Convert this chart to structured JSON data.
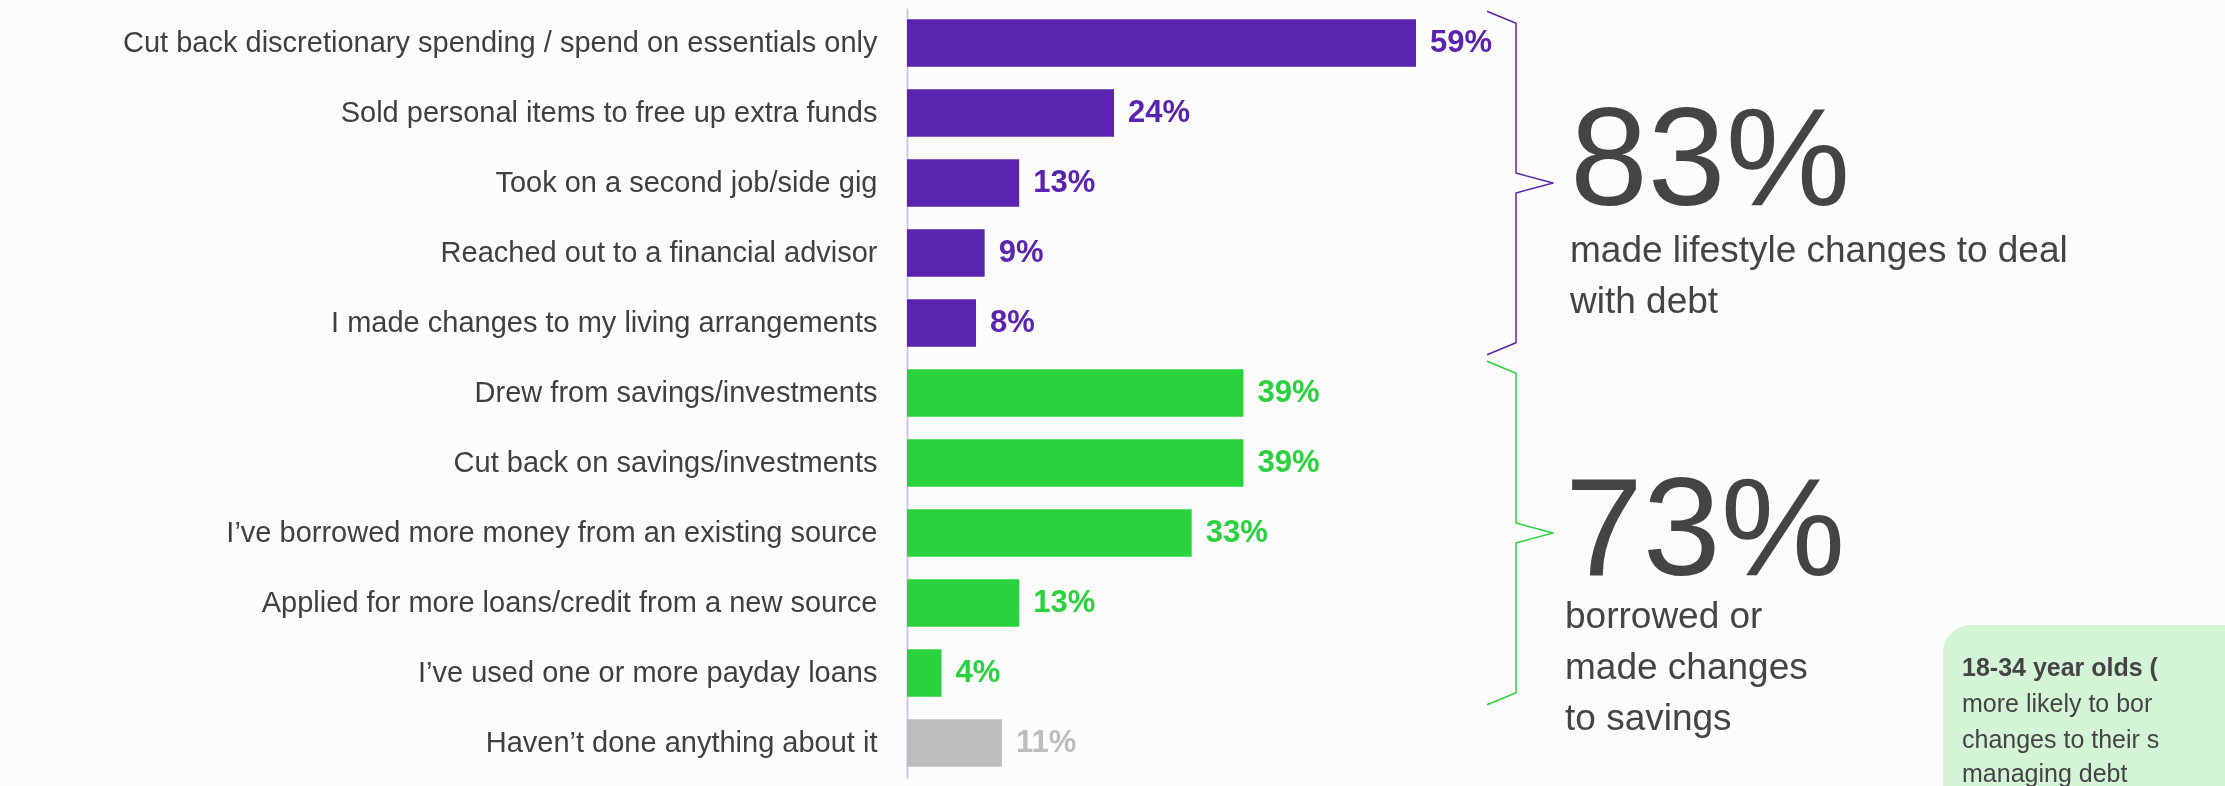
{
  "chart_data": {
    "type": "bar",
    "orientation": "horizontal",
    "categories": [
      "Cut back discretionary spending / spend on essentials only",
      "Sold personal items to free up extra funds",
      "Took on a second job/side gig",
      "Reached out to a financial advisor",
      "I made changes to my living arrangements",
      "Drew from savings/investments",
      "Cut back on savings/investments",
      "I’ve borrowed more money from an existing source",
      "Applied for more loans/credit from a new source",
      "I’ve used one or more payday loans",
      "Haven’t done anything about it"
    ],
    "values": [
      59,
      24,
      13,
      9,
      8,
      39,
      39,
      33,
      13,
      4,
      11
    ],
    "colors": [
      "#5b24b0",
      "#5b24b0",
      "#5b24b0",
      "#5b24b0",
      "#5b24b0",
      "#2ad33d",
      "#2ad33d",
      "#2ad33d",
      "#2ad33d",
      "#2ad33d",
      "#bdbdbd"
    ],
    "value_labels": [
      "59%",
      "24%",
      "13%",
      "9%",
      "8%",
      "39%",
      "39%",
      "33%",
      "13%",
      "4%",
      "11%"
    ],
    "grid": false,
    "annotations": [
      "83%",
      "made lifestyle changes to deal with debt",
      "73%",
      "borrowed or made changes to savings",
      "18-34 year olds (",
      "more likely to bor",
      "changes to their s",
      "managing debt"
    ]
  }
}
